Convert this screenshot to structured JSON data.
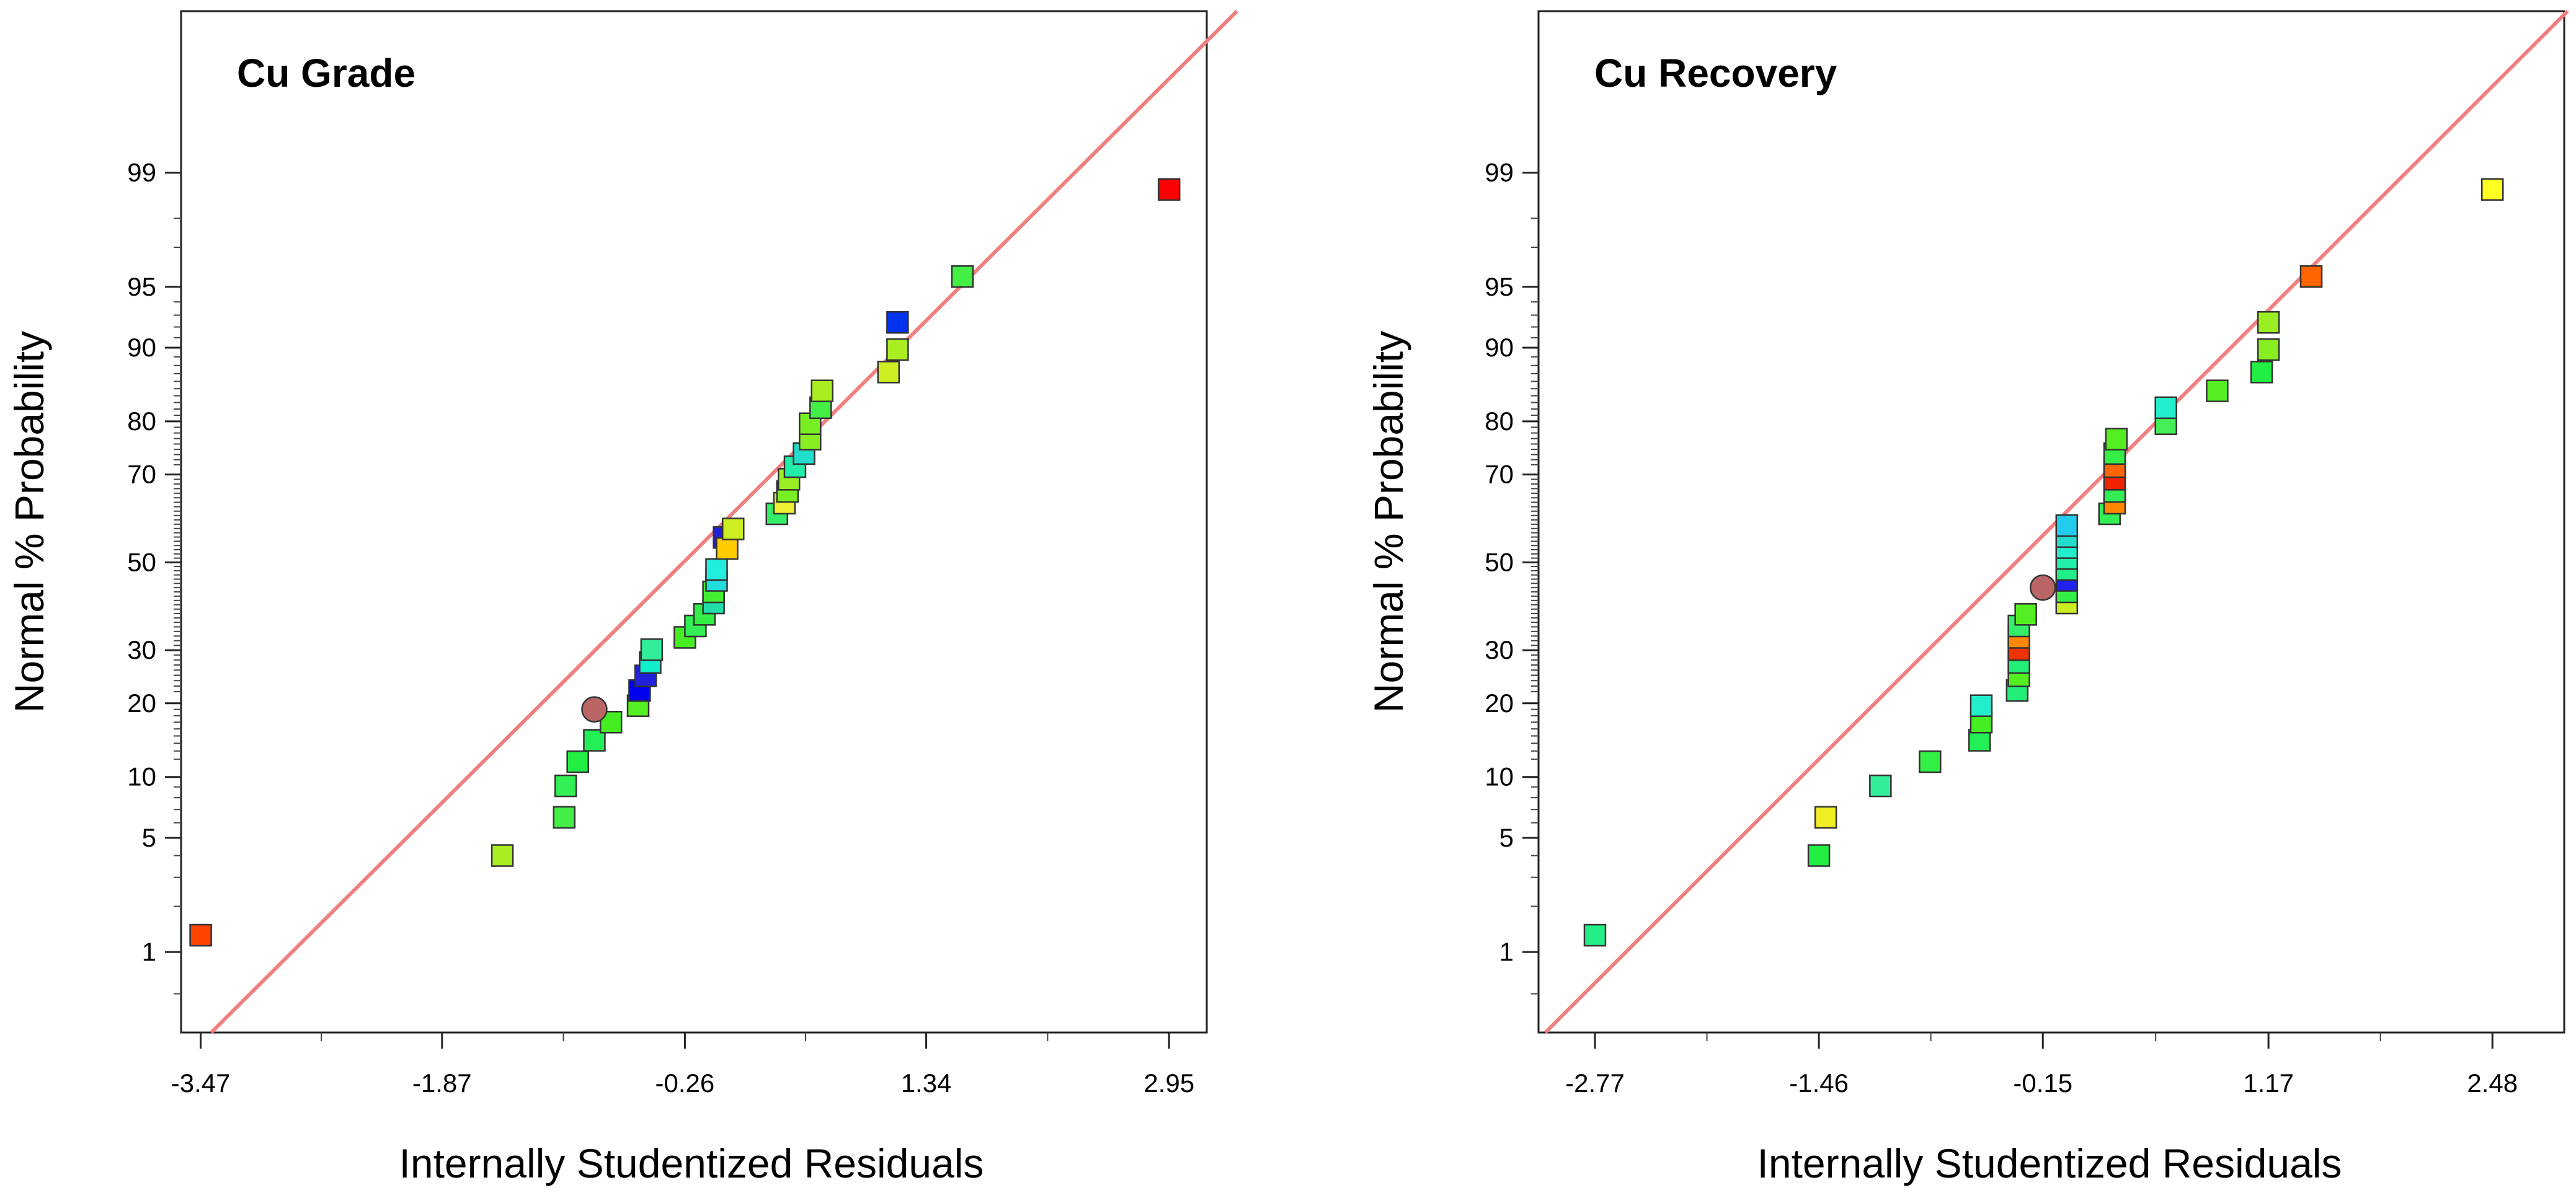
{
  "chart_data": [
    {
      "type": "scatter",
      "title": "Cu Grade",
      "xlabel": "Internally Studentized Residuals",
      "ylabel": "Normal % Probability",
      "xlim": [
        -3.6,
        3.2
      ],
      "x_ticks": [
        -3.47,
        -1.87,
        -0.26,
        1.34,
        2.95
      ],
      "x_tick_labels": [
        "-3.47",
        "-1.87",
        "-0.26",
        "1.34",
        "2.95"
      ],
      "y_scale": "normal-probability",
      "ylim": [
        0.25,
        99.95
      ],
      "y_ticks": [
        1,
        5,
        10,
        20,
        30,
        50,
        70,
        80,
        90,
        95,
        99
      ],
      "y_tick_labels": [
        "1",
        "5",
        "10",
        "20",
        "30",
        "50",
        "70",
        "80",
        "90",
        "95",
        "99"
      ],
      "reference_line": {
        "color": "#f08080",
        "from": [
          -3.4,
          0.25
        ],
        "to": [
          3.4,
          99.95
        ]
      },
      "points": [
        {
          "x": -3.47,
          "y": 1.3,
          "color": "#ff4400",
          "marker": "square"
        },
        {
          "x": -1.47,
          "y": 4.0,
          "color": "#aaee22",
          "marker": "square"
        },
        {
          "x": -1.06,
          "y": 6.4,
          "color": "#44ee44",
          "marker": "square"
        },
        {
          "x": -1.05,
          "y": 9.1,
          "color": "#33ee55",
          "marker": "square"
        },
        {
          "x": -0.97,
          "y": 11.7,
          "color": "#22ee44",
          "marker": "square"
        },
        {
          "x": -0.86,
          "y": 14.4,
          "color": "#22ee55",
          "marker": "square"
        },
        {
          "x": -0.75,
          "y": 17.0,
          "color": "#44ee22",
          "marker": "square"
        },
        {
          "x": -0.86,
          "y": 19.0,
          "color": "#bb6666",
          "marker": "circle"
        },
        {
          "x": -0.57,
          "y": 19.6,
          "color": "#55ee22",
          "marker": "square"
        },
        {
          "x": -0.56,
          "y": 22.2,
          "color": "#0000ee",
          "marker": "square"
        },
        {
          "x": -0.52,
          "y": 24.9,
          "color": "#2222dd",
          "marker": "square"
        },
        {
          "x": -0.49,
          "y": 27.5,
          "color": "#11eecc",
          "marker": "square"
        },
        {
          "x": -0.48,
          "y": 30.1,
          "color": "#33ee99",
          "marker": "square"
        },
        {
          "x": -0.26,
          "y": 32.7,
          "color": "#44ee22",
          "marker": "square"
        },
        {
          "x": -0.19,
          "y": 35.2,
          "color": "#33ee55",
          "marker": "square"
        },
        {
          "x": -0.13,
          "y": 37.8,
          "color": "#33ee44",
          "marker": "square"
        },
        {
          "x": -0.07,
          "y": 40.4,
          "color": "#22ddaa",
          "marker": "square"
        },
        {
          "x": -0.07,
          "y": 43.0,
          "color": "#44ee33",
          "marker": "square"
        },
        {
          "x": -0.05,
          "y": 45.7,
          "color": "#22dddd",
          "marker": "square"
        },
        {
          "x": -0.05,
          "y": 48.3,
          "color": "#22eedd",
          "marker": "square"
        },
        {
          "x": 0.0,
          "y": 55.9,
          "color": "#2222dd",
          "marker": "square"
        },
        {
          "x": 0.02,
          "y": 53.3,
          "color": "#ffcc00",
          "marker": "square"
        },
        {
          "x": 0.06,
          "y": 57.9,
          "color": "#ccee22",
          "marker": "square"
        },
        {
          "x": 0.35,
          "y": 61.4,
          "color": "#33ee66",
          "marker": "square"
        },
        {
          "x": 0.4,
          "y": 63.8,
          "color": "#eeee33",
          "marker": "square"
        },
        {
          "x": 0.42,
          "y": 66.4,
          "color": "#77ee22",
          "marker": "square"
        },
        {
          "x": 0.43,
          "y": 69.0,
          "color": "#99ee22",
          "marker": "square"
        },
        {
          "x": 0.47,
          "y": 71.6,
          "color": "#22eeaa",
          "marker": "square"
        },
        {
          "x": 0.53,
          "y": 74.2,
          "color": "#22ddcc",
          "marker": "square"
        },
        {
          "x": 0.57,
          "y": 76.9,
          "color": "#88ee22",
          "marker": "square"
        },
        {
          "x": 0.57,
          "y": 79.6,
          "color": "#77ee22",
          "marker": "square"
        },
        {
          "x": 0.64,
          "y": 82.2,
          "color": "#44ee44",
          "marker": "square"
        },
        {
          "x": 0.65,
          "y": 84.7,
          "color": "#aaee22",
          "marker": "square"
        },
        {
          "x": 1.09,
          "y": 87.2,
          "color": "#ccee22",
          "marker": "square"
        },
        {
          "x": 1.15,
          "y": 89.8,
          "color": "#aaee22",
          "marker": "square"
        },
        {
          "x": 1.15,
          "y": 92.4,
          "color": "#0033ee",
          "marker": "square"
        },
        {
          "x": 1.58,
          "y": 95.6,
          "color": "#44ee44",
          "marker": "square"
        },
        {
          "x": 2.95,
          "y": 98.7,
          "color": "#ff0000",
          "marker": "square"
        }
      ]
    },
    {
      "type": "scatter",
      "title": "Cu Recovery",
      "xlabel": "Internally Studentized Residuals",
      "ylabel": "Normal % Probability",
      "xlim": [
        -3.1,
        2.9
      ],
      "x_ticks": [
        -2.77,
        -1.46,
        -0.15,
        1.17,
        2.48
      ],
      "x_tick_labels": [
        "-2.77",
        "-1.46",
        "-0.15",
        "1.17",
        "2.48"
      ],
      "y_scale": "normal-probability",
      "ylim": [
        0.25,
        99.95
      ],
      "y_ticks": [
        1,
        5,
        10,
        20,
        30,
        50,
        70,
        80,
        90,
        95,
        99
      ],
      "y_tick_labels": [
        "1",
        "5",
        "10",
        "20",
        "30",
        "50",
        "70",
        "80",
        "90",
        "95",
        "99"
      ],
      "reference_line": {
        "color": "#f08080",
        "from": [
          -3.06,
          0.25
        ],
        "to": [
          2.92,
          99.95
        ]
      },
      "points": [
        {
          "x": -2.77,
          "y": 1.3,
          "color": "#22ee88",
          "marker": "square"
        },
        {
          "x": -1.46,
          "y": 4.0,
          "color": "#22ee44",
          "marker": "square"
        },
        {
          "x": -1.42,
          "y": 6.4,
          "color": "#eeee22",
          "marker": "square"
        },
        {
          "x": -1.1,
          "y": 9.1,
          "color": "#33ee99",
          "marker": "square"
        },
        {
          "x": -0.81,
          "y": 11.7,
          "color": "#33ee44",
          "marker": "square"
        },
        {
          "x": -0.52,
          "y": 14.4,
          "color": "#22ee55",
          "marker": "square"
        },
        {
          "x": -0.51,
          "y": 17.0,
          "color": "#44ee22",
          "marker": "square"
        },
        {
          "x": -0.51,
          "y": 19.6,
          "color": "#22eecc",
          "marker": "square"
        },
        {
          "x": -0.3,
          "y": 22.2,
          "color": "#22ee77",
          "marker": "square"
        },
        {
          "x": -0.29,
          "y": 24.9,
          "color": "#55ee22",
          "marker": "square"
        },
        {
          "x": -0.29,
          "y": 27.5,
          "color": "#22ee77",
          "marker": "square"
        },
        {
          "x": -0.29,
          "y": 30.1,
          "color": "#ee3300",
          "marker": "square"
        },
        {
          "x": -0.29,
          "y": 32.7,
          "color": "#ff8800",
          "marker": "square"
        },
        {
          "x": -0.29,
          "y": 35.2,
          "color": "#33ee66",
          "marker": "square"
        },
        {
          "x": -0.25,
          "y": 37.8,
          "color": "#55ee22",
          "marker": "square"
        },
        {
          "x": -0.15,
          "y": 44.0,
          "color": "#bb6666",
          "marker": "circle"
        },
        {
          "x": -0.01,
          "y": 40.4,
          "color": "#ccee22",
          "marker": "square"
        },
        {
          "x": -0.01,
          "y": 43.0,
          "color": "#33ee44",
          "marker": "square"
        },
        {
          "x": -0.01,
          "y": 45.7,
          "color": "#2222ee",
          "marker": "square"
        },
        {
          "x": -0.01,
          "y": 48.3,
          "color": "#22ee88",
          "marker": "square"
        },
        {
          "x": -0.01,
          "y": 50.9,
          "color": "#22eeaa",
          "marker": "square"
        },
        {
          "x": -0.01,
          "y": 53.5,
          "color": "#22eecc",
          "marker": "square"
        },
        {
          "x": -0.01,
          "y": 56.1,
          "color": "#22ddcc",
          "marker": "square"
        },
        {
          "x": -0.01,
          "y": 58.7,
          "color": "#22ccee",
          "marker": "square"
        },
        {
          "x": 0.24,
          "y": 61.4,
          "color": "#33ee55",
          "marker": "square"
        },
        {
          "x": 0.27,
          "y": 63.8,
          "color": "#ff8800",
          "marker": "square"
        },
        {
          "x": 0.27,
          "y": 66.4,
          "color": "#33ee55",
          "marker": "square"
        },
        {
          "x": 0.27,
          "y": 69.0,
          "color": "#ee2200",
          "marker": "square"
        },
        {
          "x": 0.27,
          "y": 71.6,
          "color": "#ff6600",
          "marker": "square"
        },
        {
          "x": 0.27,
          "y": 74.2,
          "color": "#33ee44",
          "marker": "square"
        },
        {
          "x": 0.28,
          "y": 76.9,
          "color": "#55ee22",
          "marker": "square"
        },
        {
          "x": 0.57,
          "y": 79.6,
          "color": "#44ee55",
          "marker": "square"
        },
        {
          "x": 0.57,
          "y": 82.2,
          "color": "#22eecc",
          "marker": "square"
        },
        {
          "x": 0.87,
          "y": 84.7,
          "color": "#55ee22",
          "marker": "square"
        },
        {
          "x": 1.13,
          "y": 87.2,
          "color": "#22ee44",
          "marker": "square"
        },
        {
          "x": 1.17,
          "y": 89.8,
          "color": "#88ee22",
          "marker": "square"
        },
        {
          "x": 1.17,
          "y": 92.4,
          "color": "#99ee22",
          "marker": "square"
        },
        {
          "x": 1.42,
          "y": 95.6,
          "color": "#ff6600",
          "marker": "square"
        },
        {
          "x": 2.48,
          "y": 98.7,
          "color": "#ffff22",
          "marker": "square"
        }
      ]
    }
  ]
}
